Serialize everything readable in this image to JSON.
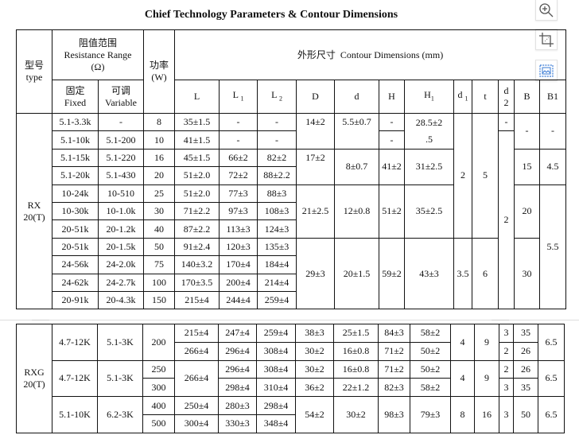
{
  "title": "Chief Technology Parameters & Contour Dimensions",
  "toolbar": {
    "icons": [
      "zoom-in-icon",
      "crop-icon",
      "image-icon"
    ],
    "image_icon_color": "#3a7bd5"
  },
  "header": {
    "type_cn": "型号",
    "type_en": "type",
    "range_cn": "阻值范围",
    "range_en": "Resistance Range",
    "range_unit": "(Ω)",
    "fixed_cn": "固定",
    "fixed_en": "Fixed",
    "variable_cn": "可调",
    "variable_en": "Variable",
    "power_cn": "功率",
    "power_unit": "(W)",
    "contour_cn": "外形尺寸",
    "contour_en": "Contour Dimensions (mm)",
    "L": "L",
    "L1": "L",
    "L1_sub": "1",
    "L2": "L",
    "L2_sub": "2",
    "D": "D",
    "d": "d",
    "H": "H",
    "H1": "H",
    "H1_sub": "1",
    "d1": "d",
    "d1_sub": "1",
    "t": "t",
    "d2_a": "d",
    "d2_b": "2",
    "B": "B",
    "B1": "B1"
  },
  "rx": {
    "type_a": "RX",
    "type_b": "20(T)",
    "rows": [
      {
        "fixed": "5.1-3.3k",
        "variable": "-",
        "w": "8",
        "L": "35±1.5",
        "L1": "-",
        "L2": "-",
        "D": "14±2",
        "d": "5.5±0.7",
        "H": "-",
        "H1_a": "28.5±2",
        "H1_b": ".5",
        "d1": "2",
        "t": "5",
        "d2": "-",
        "B": "-",
        "B1": "-"
      },
      {
        "fixed": "5.1-10k",
        "variable": "5.1-200",
        "w": "10",
        "L": "41±1.5",
        "L1": "-",
        "L2": "-",
        "H": "-",
        "d2": "2"
      },
      {
        "fixed": "5.1-15k",
        "variable": "5.1-220",
        "w": "16",
        "L": "45±1.5",
        "L1": "66±2",
        "L2": "82±2",
        "D": "17±2",
        "d": "8±0.7",
        "H": "41±2",
        "H1": "31±2.5",
        "B": "15",
        "B1": "4.5"
      },
      {
        "fixed": "5.1-20k",
        "variable": "5.1-430",
        "w": "20",
        "L": "51±2.0",
        "L1": "72±2",
        "L2": "88±2.2"
      },
      {
        "fixed": "10-24k",
        "variable": "10-510",
        "w": "25",
        "L": "51±2.0",
        "L1": "77±3",
        "L2": "88±3",
        "D": "21±2.5",
        "d": "12±0.8",
        "H": "51±2",
        "H1": "35±2.5",
        "B": "20",
        "B1": "5.5"
      },
      {
        "fixed": "10-30k",
        "variable": "10-1.0k",
        "w": "30",
        "L": "71±2.2",
        "L1": "97±3",
        "L2": "108±3"
      },
      {
        "fixed": "20-51k",
        "variable": "20-1.2k",
        "w": "40",
        "L": "87±2.2",
        "L1": "113±3",
        "L2": "124±3"
      },
      {
        "fixed": "20-51k",
        "variable": "20-1.5k",
        "w": "50",
        "L": "91±2.4",
        "L1": "120±3",
        "L2": "135±3",
        "D": "29±3",
        "d": "20±1.5",
        "H": "59±2",
        "H1": "43±3",
        "d1": "3.5",
        "t": "6",
        "B": "30"
      },
      {
        "fixed": "24-56k",
        "variable": "24-2.0k",
        "w": "75",
        "L": "140±3.2",
        "L1": "170±4",
        "L2": "184±4"
      },
      {
        "fixed": "24-62k",
        "variable": "24-2.7k",
        "w": "100",
        "L": "170±3.5",
        "L1": "200±4",
        "L2": "214±4"
      },
      {
        "fixed": "20-91k",
        "variable": "20-4.3k",
        "w": "150",
        "L": "215±4",
        "L1": "244±4",
        "L2": "259±4"
      }
    ]
  },
  "rxg": {
    "type_a": "RXG",
    "type_b": "20(T)",
    "rows": [
      {
        "fixed": "4.7-12K",
        "variable": "5.1-3K",
        "w": "200",
        "L": "215±4",
        "L1": "247±4",
        "L2": "259±4",
        "D": "38±3",
        "d": "25±1.5",
        "H": "84±3",
        "H1": "58±2",
        "d1": "4",
        "t": "9",
        "d2": "3",
        "B": "35",
        "B1": "6.5"
      },
      {
        "L": "266±4",
        "L1": "296±4",
        "L2": "308±4",
        "D": "30±2",
        "d": "16±0.8",
        "H": "71±2",
        "H1": "50±2",
        "d2": "2",
        "B": "26"
      },
      {
        "fixed": "4.7-12K",
        "variable": "5.1-3K",
        "w": "250",
        "L": "266±4",
        "L1": "296±4",
        "L2": "308±4",
        "D": "30±2",
        "d": "16±0.8",
        "H": "71±2",
        "H1": "50±2",
        "d1": "4",
        "t": "9",
        "d2": "2",
        "B": "26",
        "B1": "6.5"
      },
      {
        "w": "300",
        "L1": "298±4",
        "L2": "310±4",
        "D": "36±2",
        "d": "22±1.2",
        "H": "82±3",
        "H1": "58±2",
        "d2": "3",
        "B": "35"
      },
      {
        "fixed": "5.1-10K",
        "variable": "6.2-3K",
        "w": "400",
        "L": "250±4",
        "L1": "280±3",
        "L2": "298±4",
        "D": "54±2",
        "d": "30±2",
        "H": "98±3",
        "H1": "79±3",
        "d1": "8",
        "t": "16",
        "d2": "3",
        "B": "50",
        "B1": "6.5"
      },
      {
        "w": "500",
        "L": "300±4",
        "L1": "330±3",
        "L2": "348±4"
      }
    ]
  }
}
